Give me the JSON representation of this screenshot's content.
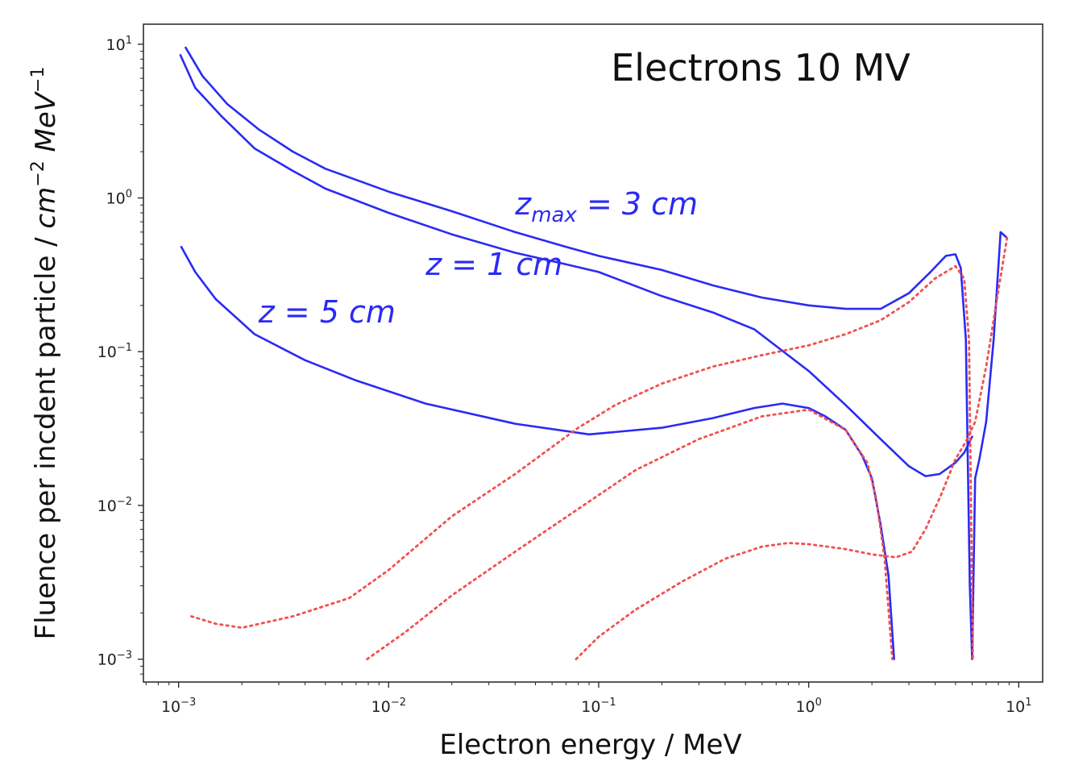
{
  "chart_data": {
    "type": "line",
    "title": "Electrons 10 MV",
    "xlabel": "Electron energy / MeV",
    "ylabel": "Fluence per incdent particle / cm⁻² MeV⁻¹",
    "ylabel_parts": {
      "text": "Fluence per incdent particle / ",
      "unit1": "cm",
      "exp1": "−2",
      "unit2": "MeV",
      "exp2": "−1"
    },
    "xscale": "log",
    "yscale": "log",
    "xlim": [
      0.00068,
      13
    ],
    "ylim": [
      0.00071,
      13.5
    ],
    "x_ticks": [
      {
        "value": 0.001,
        "base": "10",
        "exp": "−3"
      },
      {
        "value": 0.01,
        "base": "10",
        "exp": "−2"
      },
      {
        "value": 0.1,
        "base": "10",
        "exp": "−1"
      },
      {
        "value": 1,
        "base": "10",
        "exp": "0"
      },
      {
        "value": 10,
        "base": "10",
        "exp": "1"
      }
    ],
    "y_ticks": [
      {
        "value": 0.001,
        "base": "10",
        "exp": "−3"
      },
      {
        "value": 0.01,
        "base": "10",
        "exp": "−2"
      },
      {
        "value": 0.1,
        "base": "10",
        "exp": "−1"
      },
      {
        "value": 1,
        "base": "10",
        "exp": "0"
      },
      {
        "value": 10,
        "base": "10",
        "exp": "1"
      }
    ],
    "grid": false,
    "legend": "none",
    "colors": {
      "total": "#2a2af5",
      "component": "#f25050"
    },
    "annotations": [
      {
        "base": "z",
        "sub": "max",
        "rest": " = 3 cm",
        "x": 0.04,
        "y": 0.78
      },
      {
        "base": "z",
        "sub": "",
        "rest": " = 1 cm",
        "x": 0.015,
        "y": 0.315
      },
      {
        "base": "z",
        "sub": "",
        "rest": " = 5 cm",
        "x": 0.0024,
        "y": 0.155
      }
    ],
    "series": [
      {
        "style": "solid",
        "x": [
          0.00108,
          0.0013,
          0.0017,
          0.0024,
          0.0035,
          0.005,
          0.01,
          0.02,
          0.04,
          0.07,
          0.1,
          0.2,
          0.35,
          0.6,
          1.0,
          1.5,
          2.2,
          3.0,
          3.8,
          4.5,
          5.0,
          5.3,
          5.6,
          5.85,
          6.0,
          6.2,
          6.5,
          7.0,
          7.6,
          8.2,
          8.8
        ],
        "y": [
          9.5,
          6.2,
          4.1,
          2.8,
          2.0,
          1.55,
          1.1,
          0.82,
          0.6,
          0.48,
          0.42,
          0.34,
          0.27,
          0.225,
          0.2,
          0.19,
          0.19,
          0.24,
          0.33,
          0.42,
          0.43,
          0.35,
          0.12,
          0.003,
          0.001,
          0.015,
          0.02,
          0.035,
          0.12,
          0.6,
          0.55
        ]
      },
      {
        "style": "solid",
        "x": [
          0.00102,
          0.0012,
          0.0016,
          0.0023,
          0.0035,
          0.005,
          0.01,
          0.02,
          0.04,
          0.07,
          0.1,
          0.2,
          0.35,
          0.55,
          1.0,
          1.5,
          2.2,
          3.0,
          3.6,
          4.2,
          5.0,
          5.5,
          6.0
        ],
        "y": [
          8.5,
          5.2,
          3.4,
          2.1,
          1.5,
          1.15,
          0.8,
          0.58,
          0.44,
          0.37,
          0.33,
          0.23,
          0.18,
          0.14,
          0.075,
          0.045,
          0.027,
          0.018,
          0.0155,
          0.016,
          0.019,
          0.022,
          0.028
        ]
      },
      {
        "style": "solid",
        "x": [
          0.00103,
          0.0012,
          0.0015,
          0.0023,
          0.004,
          0.007,
          0.015,
          0.04,
          0.09,
          0.2,
          0.35,
          0.55,
          0.75,
          1.0,
          1.2,
          1.5,
          1.8,
          2.0,
          2.2,
          2.4,
          2.55
        ],
        "y": [
          0.48,
          0.33,
          0.22,
          0.13,
          0.088,
          0.065,
          0.046,
          0.034,
          0.029,
          0.032,
          0.037,
          0.043,
          0.046,
          0.043,
          0.038,
          0.031,
          0.021,
          0.015,
          0.0075,
          0.0035,
          0.001
        ]
      },
      {
        "style": "dotted",
        "x": [
          0.00115,
          0.0015,
          0.002,
          0.0035,
          0.0065,
          0.01,
          0.02,
          0.04,
          0.08,
          0.12,
          0.2,
          0.35,
          0.6,
          1.0,
          1.5,
          2.2,
          3.0,
          4.0,
          5.0,
          5.5,
          5.8,
          6.05
        ],
        "y": [
          0.0019,
          0.0017,
          0.0016,
          0.0019,
          0.0025,
          0.0038,
          0.0085,
          0.016,
          0.032,
          0.045,
          0.062,
          0.08,
          0.095,
          0.11,
          0.13,
          0.16,
          0.21,
          0.3,
          0.36,
          0.3,
          0.12,
          0.001
        ]
      },
      {
        "style": "dotted",
        "x": [
          0.0079,
          0.012,
          0.02,
          0.04,
          0.08,
          0.15,
          0.3,
          0.6,
          1.0,
          1.5,
          1.9,
          2.1,
          2.3,
          2.5
        ],
        "y": [
          0.001,
          0.0015,
          0.0026,
          0.005,
          0.0095,
          0.017,
          0.027,
          0.038,
          0.042,
          0.031,
          0.019,
          0.011,
          0.0045,
          0.001
        ]
      },
      {
        "style": "dotted",
        "x": [
          0.078,
          0.1,
          0.15,
          0.25,
          0.4,
          0.6,
          0.8,
          1.0,
          1.5,
          2.0,
          2.6,
          3.1,
          3.6,
          4.3,
          5.0,
          5.6,
          6.2,
          7.0,
          8.0,
          8.8
        ],
        "y": [
          0.001,
          0.0014,
          0.0021,
          0.0032,
          0.0045,
          0.0054,
          0.0057,
          0.0056,
          0.0052,
          0.0048,
          0.0046,
          0.005,
          0.007,
          0.012,
          0.02,
          0.026,
          0.035,
          0.08,
          0.25,
          0.55
        ]
      }
    ]
  }
}
